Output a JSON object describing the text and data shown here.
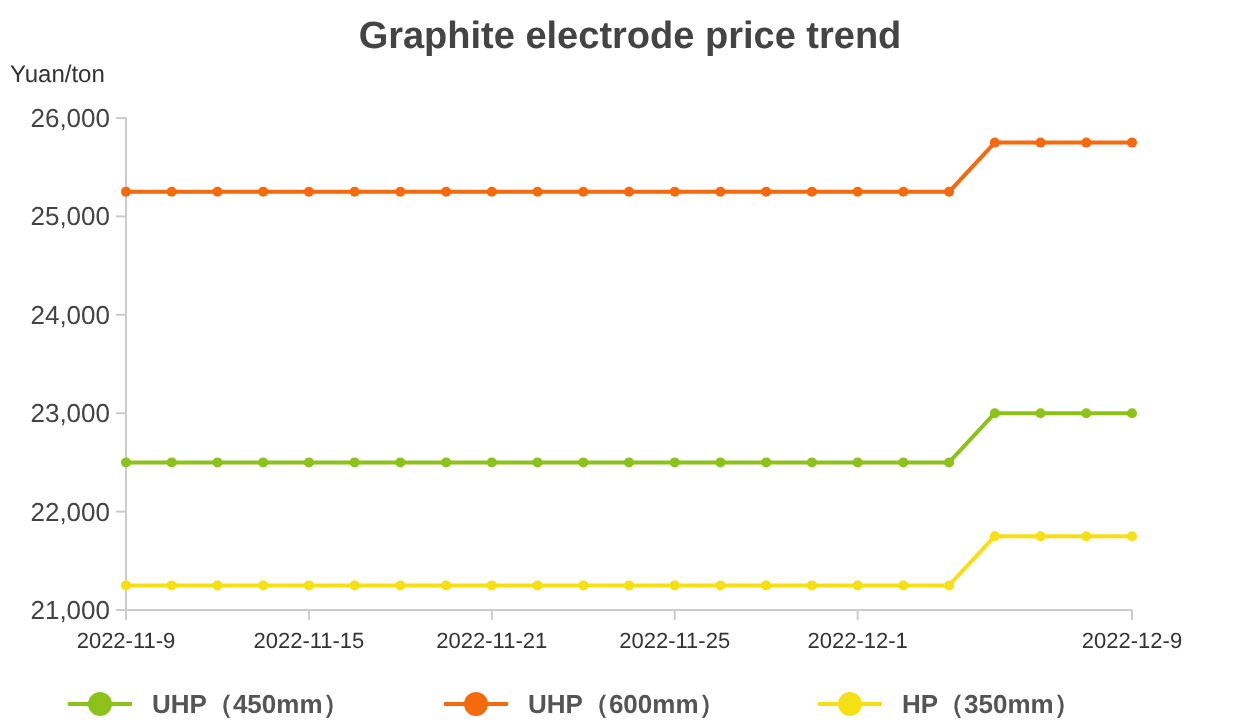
{
  "chart_data": {
    "type": "line",
    "title": "Graphite electrode price trend",
    "ylabel": "Yuan/ton",
    "categories": [
      "2022-11-9",
      null,
      null,
      null,
      "2022-11-15",
      null,
      null,
      null,
      "2022-11-21",
      null,
      null,
      null,
      "2022-11-25",
      null,
      null,
      null,
      "2022-12-1",
      null,
      null,
      null,
      null,
      null,
      "2022-12-9"
    ],
    "series": [
      {
        "name": "UHP（450mm）",
        "color": "#8cc21a",
        "values": [
          22500,
          22500,
          22500,
          22500,
          22500,
          22500,
          22500,
          22500,
          22500,
          22500,
          22500,
          22500,
          22500,
          22500,
          22500,
          22500,
          22500,
          22500,
          22500,
          23000,
          23000,
          23000,
          23000
        ]
      },
      {
        "name": "UHP（600mm）",
        "color": "#f5690f",
        "values": [
          25250,
          25250,
          25250,
          25250,
          25250,
          25250,
          25250,
          25250,
          25250,
          25250,
          25250,
          25250,
          25250,
          25250,
          25250,
          25250,
          25250,
          25250,
          25250,
          25750,
          25750,
          25750,
          25750
        ]
      },
      {
        "name": "HP（350mm）",
        "color": "#f5e015",
        "values": [
          21250,
          21250,
          21250,
          21250,
          21250,
          21250,
          21250,
          21250,
          21250,
          21250,
          21250,
          21250,
          21250,
          21250,
          21250,
          21250,
          21250,
          21250,
          21250,
          21750,
          21750,
          21750,
          21750
        ]
      }
    ],
    "ylim": [
      21000,
      26000
    ],
    "yticks": [
      {
        "value": 21000,
        "label": "21,000"
      },
      {
        "value": 22000,
        "label": "22,000"
      },
      {
        "value": 23000,
        "label": "23,000"
      },
      {
        "value": 24000,
        "label": "24,000"
      },
      {
        "value": 25000,
        "label": "25,000"
      },
      {
        "value": 26000,
        "label": "26,000"
      }
    ],
    "grid": false,
    "legend": "bottom",
    "marker": "circle",
    "line_style": "solid"
  }
}
